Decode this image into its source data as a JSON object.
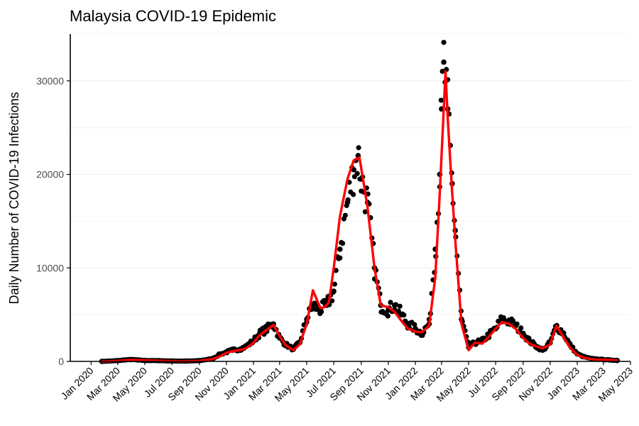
{
  "colors": {
    "points": "#000000",
    "trend": "#ff0000",
    "grid": "#ebebeb",
    "background": "#ffffff"
  },
  "chart_data": {
    "type": "scatter",
    "title": "Malaysia COVID-19 Epidemic",
    "xlabel": "",
    "ylabel": "Daily Number of COVID-19 Infections",
    "x_type": "date",
    "xlim": [
      "2019-11-15",
      "2023-05-01"
    ],
    "ylim": [
      0,
      35000
    ],
    "grid": "horizontal",
    "legend": "none",
    "x_ticks": [
      "2020-01-01",
      "2020-03-01",
      "2020-05-01",
      "2020-07-01",
      "2020-09-01",
      "2020-11-01",
      "2021-01-01",
      "2021-03-01",
      "2021-05-01",
      "2021-07-01",
      "2021-09-01",
      "2021-11-01",
      "2022-01-01",
      "2022-03-01",
      "2022-05-01",
      "2022-07-01",
      "2022-09-01",
      "2022-11-01",
      "2023-01-01",
      "2023-03-01",
      "2023-05-01"
    ],
    "x_tick_labels": [
      "Jan 2020",
      "Mar 2020",
      "May 2020",
      "Jul 2020",
      "Sep 2020",
      "Nov 2020",
      "Jan 2021",
      "Mar 2021",
      "May 2021",
      "Jul 2021",
      "Sep 2021",
      "Nov 2021",
      "Jan 2022",
      "Mar 2022",
      "May 2022",
      "Jul 2022",
      "Sep 2022",
      "Nov 2022",
      "Jan 2023",
      "Mar 2023",
      "May 2023"
    ],
    "y_ticks": [
      0,
      10000,
      20000,
      30000
    ],
    "y_tick_labels": [
      "0",
      "10000",
      "20000",
      "30000"
    ],
    "series": [
      {
        "type": "scatter",
        "x": [
          "2020-01-25",
          "2020-03-01",
          "2020-03-15",
          "2020-04-01",
          "2020-04-15",
          "2020-05-01",
          "2020-06-01",
          "2020-07-01",
          "2020-08-01",
          "2020-09-01",
          "2020-10-01",
          "2020-10-15",
          "2020-11-01",
          "2020-11-15",
          "2020-12-01",
          "2020-12-15",
          "2021-01-01",
          "2021-01-15",
          "2021-02-01",
          "2021-02-15",
          "2021-03-01",
          "2021-03-15",
          "2021-04-01",
          "2021-04-15",
          "2021-05-01",
          "2021-05-15",
          "2021-06-01",
          "2021-06-15",
          "2021-07-01",
          "2021-07-15",
          "2021-08-01",
          "2021-08-15",
          "2021-08-25",
          "2021-09-01",
          "2021-09-15",
          "2021-10-01",
          "2021-10-15",
          "2021-11-01",
          "2021-11-15",
          "2021-12-01",
          "2021-12-15",
          "2022-01-01",
          "2022-01-15",
          "2022-02-01",
          "2022-02-15",
          "2022-02-25",
          "2022-03-01",
          "2022-03-06",
          "2022-03-15",
          "2022-03-25",
          "2022-04-01",
          "2022-04-15",
          "2022-05-01",
          "2022-05-15",
          "2022-06-01",
          "2022-06-15",
          "2022-07-01",
          "2022-07-15",
          "2022-08-01",
          "2022-08-15",
          "2022-09-01",
          "2022-09-15",
          "2022-10-01",
          "2022-10-15",
          "2022-11-01",
          "2022-11-15",
          "2022-12-01",
          "2022-12-15",
          "2023-01-01",
          "2023-01-15",
          "2023-02-01",
          "2023-02-15",
          "2023-03-01",
          "2023-03-15",
          "2023-04-01"
        ],
        "y": [
          0,
          80,
          150,
          200,
          150,
          100,
          80,
          40,
          30,
          80,
          300,
          700,
          1000,
          1200,
          1300,
          1600,
          2200,
          3000,
          3500,
          4000,
          2500,
          1800,
          1300,
          2000,
          4500,
          6000,
          5500,
          6000,
          7500,
          12000,
          17000,
          20500,
          22000,
          19500,
          17000,
          10000,
          6000,
          5500,
          6000,
          5000,
          4000,
          3500,
          3000,
          4000,
          12000,
          20000,
          27000,
          32000,
          27000,
          19000,
          14000,
          4500,
          1500,
          2000,
          2200,
          2800,
          3500,
          4500,
          4300,
          3800,
          3000,
          2200,
          1600,
          1200,
          2000,
          3800,
          3000,
          1800,
          800,
          500,
          300,
          250,
          200,
          150,
          100
        ]
      },
      {
        "type": "line",
        "x": [
          "2020-01-25",
          "2020-03-01",
          "2020-04-01",
          "2020-05-01",
          "2020-06-01",
          "2020-07-01",
          "2020-08-01",
          "2020-09-01",
          "2020-10-01",
          "2020-10-15",
          "2020-11-01",
          "2020-11-15",
          "2020-12-01",
          "2020-12-15",
          "2021-01-01",
          "2021-01-15",
          "2021-02-01",
          "2021-02-15",
          "2021-03-01",
          "2021-03-15",
          "2021-04-01",
          "2021-04-15",
          "2021-05-01",
          "2021-05-15",
          "2021-06-01",
          "2021-06-10",
          "2021-06-20",
          "2021-07-01",
          "2021-07-15",
          "2021-08-01",
          "2021-08-15",
          "2021-08-28",
          "2021-09-05",
          "2021-09-15",
          "2021-10-01",
          "2021-10-15",
          "2021-11-01",
          "2021-11-15",
          "2021-12-01",
          "2021-12-15",
          "2022-01-01",
          "2022-01-15",
          "2022-02-01",
          "2022-02-15",
          "2022-02-25",
          "2022-03-01",
          "2022-03-06",
          "2022-03-10",
          "2022-03-15",
          "2022-03-25",
          "2022-04-01",
          "2022-04-15",
          "2022-05-01",
          "2022-05-15",
          "2022-06-01",
          "2022-06-15",
          "2022-07-01",
          "2022-07-15",
          "2022-08-01",
          "2022-08-15",
          "2022-09-01",
          "2022-09-15",
          "2022-10-01",
          "2022-10-15",
          "2022-11-01",
          "2022-11-15",
          "2022-12-01",
          "2022-12-15",
          "2023-01-01",
          "2023-01-15",
          "2023-02-01",
          "2023-02-15",
          "2023-03-01",
          "2023-03-15",
          "2023-04-01"
        ],
        "y": [
          0,
          50,
          150,
          120,
          60,
          30,
          20,
          50,
          250,
          500,
          900,
          1100,
          1200,
          1400,
          2000,
          2800,
          3400,
          3900,
          2700,
          1700,
          1200,
          1800,
          4000,
          7600,
          5700,
          5800,
          6300,
          10000,
          15500,
          19500,
          21500,
          21800,
          19500,
          16500,
          10000,
          6000,
          5800,
          5300,
          4300,
          3500,
          3200,
          3100,
          3800,
          9000,
          18000,
          22000,
          27000,
          31000,
          26000,
          18000,
          13000,
          4000,
          1200,
          2000,
          1900,
          2600,
          3500,
          4200,
          4000,
          3500,
          2500,
          1900,
          1600,
          1400,
          1800,
          3800,
          2600,
          1500,
          700,
          400,
          250,
          200,
          180,
          150,
          100
        ]
      }
    ]
  }
}
